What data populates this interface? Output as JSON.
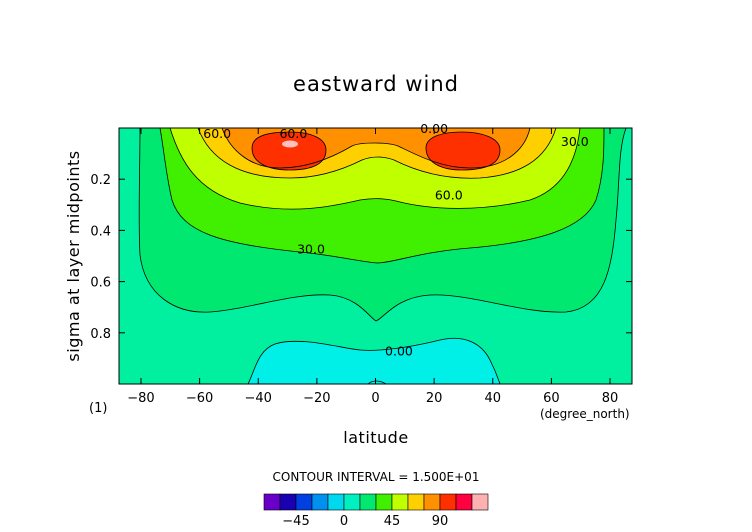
{
  "chart_data": {
    "type": "contour",
    "title": "eastward wind",
    "xlabel": "latitude",
    "ylabel": "sigma at layer midpoints",
    "x_unit": "(degree_north)",
    "y_unit": "(1)",
    "xlim": [
      -87.5,
      87.5
    ],
    "ylim": [
      0.0,
      1.0
    ],
    "y_inverted": true,
    "x_ticks": [
      -80,
      -60,
      -40,
      -20,
      0,
      20,
      40,
      60,
      80
    ],
    "x_tick_labels": [
      "−80",
      "−60",
      "−40",
      "−20",
      "0",
      "20",
      "40",
      "60",
      "80"
    ],
    "y_ticks": [
      0.2,
      0.4,
      0.6,
      0.8
    ],
    "y_tick_labels": [
      "0.2",
      "0.4",
      "0.6",
      "0.8"
    ],
    "contour_interval_label": "CONTOUR INTERVAL = 1.500E+01",
    "contour_levels": [
      -60,
      -45,
      -30,
      -15,
      0,
      15,
      30,
      45,
      60,
      75,
      90,
      105
    ],
    "contour_labels": [
      {
        "text": "60.0",
        "x": -54,
        "y": 0.02
      },
      {
        "text": "60.0",
        "x": -28,
        "y": 0.02
      },
      {
        "text": "0.00",
        "x": 20,
        "y": 0.0
      },
      {
        "text": "30.0",
        "x": 68,
        "y": 0.05
      },
      {
        "text": "60.0",
        "x": 25,
        "y": 0.26
      },
      {
        "text": "30.0",
        "x": -22,
        "y": 0.47
      },
      {
        "text": "0.00",
        "x": 8,
        "y": 0.87
      }
    ],
    "colorbar": {
      "colors": [
        "#6a00c8",
        "#1a00b0",
        "#0040e0",
        "#0090f0",
        "#00d8f0",
        "#00f0c0",
        "#00e870",
        "#40f000",
        "#c0ff00",
        "#ffd000",
        "#ff9000",
        "#ff3000",
        "#ff0040",
        "#ffb0b0"
      ],
      "tick_values": [
        -45,
        0,
        45,
        90
      ],
      "tick_labels": [
        "−45",
        "0",
        "45",
        "90"
      ]
    },
    "jets": [
      {
        "lat": -30,
        "sigma": 0.07,
        "max": 100
      },
      {
        "lat": 28,
        "sigma": 0.07,
        "max": 90
      }
    ]
  }
}
